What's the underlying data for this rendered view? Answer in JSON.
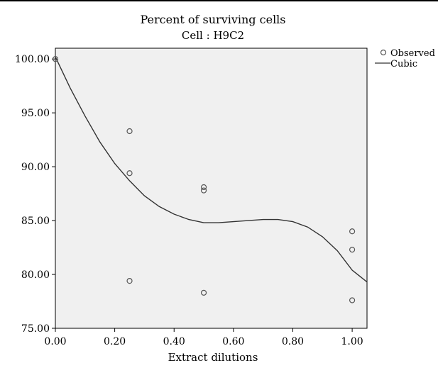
{
  "chart_data": {
    "type": "scatter",
    "title": "Percent of surviving cells",
    "subtitle": "Cell : H9C2",
    "xlabel": "Extract dilutions",
    "ylabel": "",
    "xlim": [
      0,
      1.05
    ],
    "ylim": [
      75,
      101
    ],
    "x_ticks": [
      "0.00",
      "0.20",
      "0.40",
      "0.60",
      "0.80",
      "1.00"
    ],
    "y_ticks": [
      "75.00",
      "80.00",
      "85.00",
      "90.00",
      "95.00",
      "100.00"
    ],
    "grid": false,
    "legend_position": "top-right",
    "series": [
      {
        "name": "Observed",
        "kind": "scatter",
        "points": [
          [
            0,
            100.0
          ],
          [
            0.25,
            93.3
          ],
          [
            0.25,
            89.4
          ],
          [
            0.25,
            79.4
          ],
          [
            0.5,
            88.1
          ],
          [
            0.5,
            87.8
          ],
          [
            0.5,
            78.3
          ],
          [
            1.0,
            84.0
          ],
          [
            1.0,
            82.3
          ],
          [
            1.0,
            77.6
          ]
        ]
      },
      {
        "name": "Cubic",
        "kind": "line",
        "points": [
          [
            0,
            100.2
          ],
          [
            0.05,
            97.3
          ],
          [
            0.1,
            94.7
          ],
          [
            0.15,
            92.3
          ],
          [
            0.2,
            90.3
          ],
          [
            0.25,
            88.7
          ],
          [
            0.3,
            87.3
          ],
          [
            0.35,
            86.3
          ],
          [
            0.4,
            85.6
          ],
          [
            0.45,
            85.1
          ],
          [
            0.5,
            84.8
          ],
          [
            0.55,
            84.8
          ],
          [
            0.6,
            84.9
          ],
          [
            0.65,
            85.0
          ],
          [
            0.7,
            85.1
          ],
          [
            0.75,
            85.1
          ],
          [
            0.8,
            84.9
          ],
          [
            0.85,
            84.4
          ],
          [
            0.9,
            83.5
          ],
          [
            0.95,
            82.2
          ],
          [
            1.0,
            80.4
          ],
          [
            1.05,
            79.3
          ]
        ]
      }
    ]
  },
  "colors": {
    "plot_background": "#f0f0f0",
    "marker_stroke": "#555555",
    "line": "#333333",
    "axis": "#000000"
  }
}
